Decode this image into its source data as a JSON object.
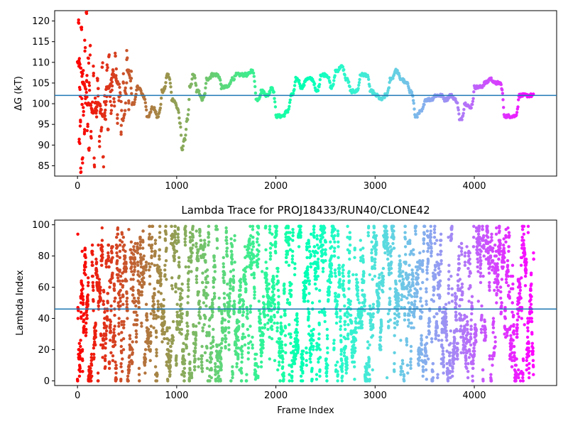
{
  "chart_data": [
    {
      "type": "scatter",
      "title": "",
      "xlabel": "",
      "ylabel": "ΔG (kT)",
      "xlim": [
        -230,
        4830
      ],
      "ylim": [
        82.5,
        122.5
      ],
      "xticks": [
        0,
        1000,
        2000,
        3000,
        4000
      ],
      "yticks": [
        85,
        90,
        95,
        100,
        105,
        110,
        115,
        120
      ],
      "grid": false,
      "colormap": "rainbow",
      "hline": {
        "y": 102.0,
        "color": "#1f77b4"
      },
      "trace_keypoints": {
        "x": [
          0,
          50,
          100,
          150,
          200,
          250,
          300,
          350,
          400,
          450,
          500,
          550,
          600,
          650,
          700,
          750,
          800,
          850,
          900,
          950,
          1000,
          1030,
          1050,
          1070,
          1100,
          1130,
          1160,
          1200,
          1250,
          1300,
          1350,
          1400,
          1450,
          1500,
          1550,
          1600,
          1650,
          1700,
          1750,
          1800,
          1850,
          1900,
          1950,
          2000,
          2050,
          2100,
          2150,
          2200,
          2250,
          2300,
          2350,
          2400,
          2450,
          2500,
          2550,
          2600,
          2650,
          2700,
          2750,
          2800,
          2850,
          2900,
          2950,
          3000,
          3050,
          3100,
          3150,
          3200,
          3250,
          3300,
          3350,
          3400,
          3450,
          3500,
          3550,
          3600,
          3650,
          3700,
          3750,
          3800,
          3850,
          3900,
          3950,
          4000,
          4050,
          4100,
          4150,
          4200,
          4250,
          4300,
          4350,
          4400,
          4450,
          4500,
          4550,
          4600
        ],
        "y": [
          110,
          105,
          100,
          98,
          100,
          97,
          104,
          107,
          105,
          96,
          108,
          100,
          104,
          102,
          97,
          99,
          97,
          103,
          107,
          101,
          99,
          95,
          89,
          91,
          96,
          104,
          107,
          103,
          101,
          106,
          107,
          107,
          104,
          104,
          106,
          107,
          107,
          107,
          108,
          101,
          103,
          102,
          104,
          97,
          97,
          98,
          102,
          106,
          104,
          106,
          106,
          103,
          107,
          107,
          104,
          108,
          109,
          106,
          103,
          103,
          107,
          107,
          103,
          102,
          101,
          102,
          106,
          108,
          106,
          105,
          103,
          97,
          98,
          101,
          101,
          102,
          102,
          101,
          102,
          101,
          96,
          100,
          99,
          104,
          104,
          105,
          106,
          105,
          105,
          97,
          97,
          97,
          102,
          102,
          102,
          102
        ]
      },
      "early_scatter": {
        "x": [
          10,
          15,
          20,
          25,
          30,
          35,
          40,
          45,
          50,
          55,
          60,
          70,
          75,
          80,
          90,
          95,
          100,
          110,
          115,
          120,
          130,
          140,
          150,
          160,
          170,
          180,
          190,
          200,
          210,
          220,
          230,
          240,
          250,
          260,
          270,
          280,
          290,
          300,
          310,
          320,
          330,
          340,
          350,
          360,
          370,
          380,
          390,
          400,
          420,
          440,
          460,
          480,
          500,
          520,
          540
        ],
        "y": [
          120,
          110,
          90,
          103,
          96,
          83,
          118,
          100,
          87,
          107,
          98,
          93,
          114,
          101,
          122,
          106,
          95,
          110,
          89,
          104,
          113,
          92,
          99,
          108,
          86,
          101,
          97,
          106,
          103,
          91,
          99,
          94,
          109,
          86,
          101,
          97,
          104,
          108,
          95,
          111,
          102,
          99,
          104,
          108,
          100,
          113,
          107,
          96,
          101,
          94,
          106,
          103,
          112,
          100,
          107
        ]
      }
    },
    {
      "type": "scatter",
      "title": "Lambda Trace for PROJ18433/RUN40/CLONE42",
      "xlabel": "Frame Index",
      "ylabel": "Lambda Index",
      "xlim": [
        -230,
        4830
      ],
      "ylim": [
        -3,
        103
      ],
      "xticks": [
        0,
        1000,
        2000,
        3000,
        4000
      ],
      "yticks": [
        0,
        20,
        40,
        60,
        80,
        100
      ],
      "grid": false,
      "colormap": "rainbow",
      "hline": {
        "y": 46,
        "color": "#1f77b4"
      },
      "point_cloud": {
        "frames": 4600,
        "lambda_min": 0,
        "lambda_max": 99,
        "approx_points": 4600
      }
    }
  ]
}
